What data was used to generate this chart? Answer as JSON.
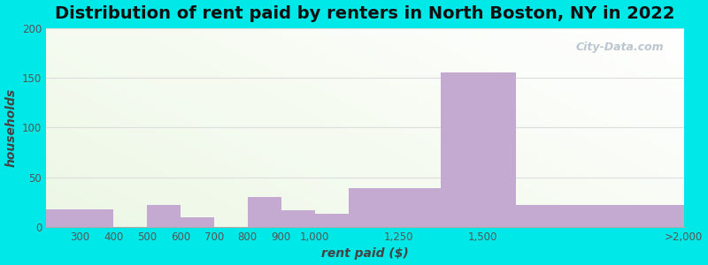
{
  "title": "Distribution of rent paid by renters in North Boston, NY in 2022",
  "xlabel": "rent paid ($)",
  "ylabel": "households",
  "bar_labels": [
    "300",
    "400",
    "500",
    "600",
    "700",
    "800",
    "900",
    "1,000",
    "1,250",
    "1,500",
    ">2,000"
  ],
  "bar_values": [
    18,
    0,
    22,
    10,
    0,
    30,
    17,
    13,
    39,
    155,
    22
  ],
  "bin_edges": [
    200,
    400,
    500,
    600,
    700,
    800,
    900,
    1000,
    1100,
    1375,
    1600,
    2100
  ],
  "bar_color": "#c4aad0",
  "ylim": [
    0,
    200
  ],
  "yticks": [
    0,
    50,
    100,
    150,
    200
  ],
  "tick_label_positions": [
    300,
    400,
    500,
    600,
    700,
    800,
    900,
    1000,
    1250,
    1500,
    2100
  ],
  "background_color_topleft": "#e8f5e0",
  "background_color_bottomright": "#f8fbf5",
  "outer_bg": "#00e8e8",
  "title_fontsize": 14,
  "axis_label_fontsize": 10,
  "tick_fontsize": 8.5,
  "watermark": "City-Data.com",
  "grid_color": "#dddddd",
  "spine_color": "#aaaaaa"
}
